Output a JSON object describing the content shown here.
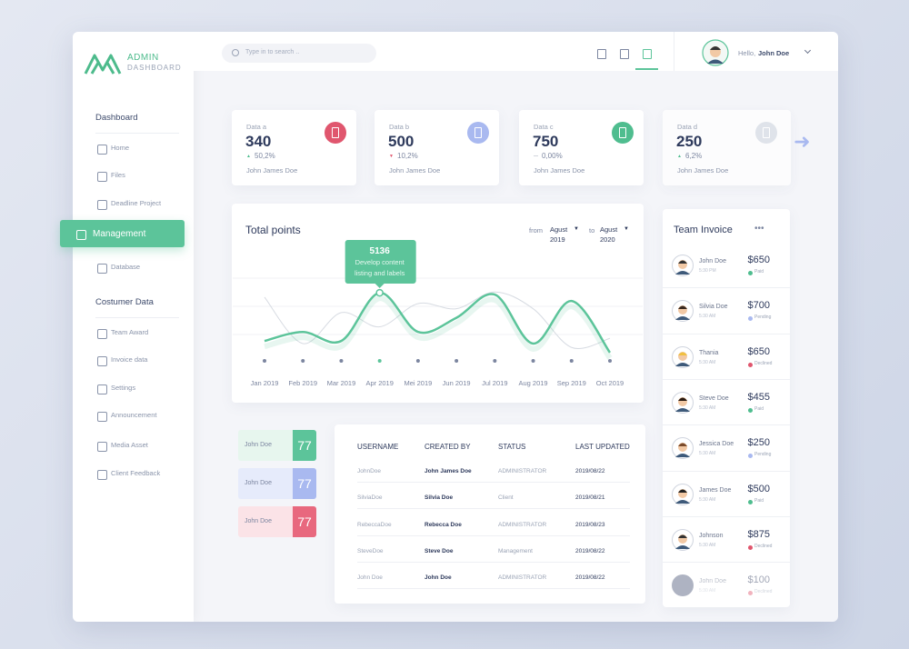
{
  "sidebar": {
    "logo_title": "ADMIN",
    "logo_subtitle": "DASHBOARD",
    "sections": [
      {
        "heading": "Dashboard",
        "items": [
          "Home",
          "Files",
          "Deadline Project",
          "Management",
          "Database"
        ]
      },
      {
        "heading": "Costumer Data",
        "items": [
          "Team Award",
          "Invoice data",
          "Settings",
          "Announcement",
          "Media Asset",
          "Client Feedback"
        ]
      }
    ]
  },
  "topbar": {
    "search_placeholder": "Type in to search ..",
    "greeting": "Hello,",
    "user": "John Doe"
  },
  "stats": [
    {
      "label": "Data a",
      "value": "340",
      "change": "50,2%",
      "name": "John James Doe"
    },
    {
      "label": "Data b",
      "value": "500",
      "change": "10,2%",
      "name": "John James Doe"
    },
    {
      "label": "Data c",
      "value": "750",
      "change": "0,00%",
      "name": "John James Doe"
    },
    {
      "label": "Data d",
      "value": "250",
      "change": "6,2%",
      "name": "John James Doe"
    }
  ],
  "chart": {
    "type": "line",
    "title": "Total points",
    "from_label": "from",
    "from_month": "Agust",
    "from_year": "2019",
    "to_label": "to",
    "to_month": "Agust",
    "to_year": "2020",
    "tooltip": {
      "value": 5136,
      "text": "Develop content listing and labels"
    },
    "categories": [
      "Jan 2019",
      "Feb 2019",
      "Mar 2019",
      "Apr 2019",
      "Mei 2019",
      "Jun 2019",
      "Jul 2019",
      "Aug 2019",
      "Sep 2019",
      "Oct 2019"
    ],
    "ylim": [
      0,
      7400
    ],
    "series": [
      {
        "color": "#5cc49a",
        "values": [
          1400,
          2100,
          1400,
          5136,
          2100,
          3200,
          5000,
          1200,
          4500,
          500
        ]
      },
      {
        "color": "#d7dbe2",
        "values": [
          4800,
          1200,
          3600,
          2500,
          4300,
          3900,
          5200,
          3900,
          900,
          1600
        ]
      }
    ]
  },
  "mini_cards": [
    {
      "name": "John Doe",
      "value": "77"
    },
    {
      "name": "John Doe",
      "value": "77"
    },
    {
      "name": "John Doe",
      "value": "77"
    }
  ],
  "table": {
    "headers": [
      "USERNAME",
      "CREATED BY",
      "STATUS",
      "LAST UPDATED"
    ],
    "rows": [
      [
        "JohnDoe",
        "John James Doe",
        "ADMINISTRATOR",
        "2019/08/22"
      ],
      [
        "SilviaDoe",
        "Silvia Doe",
        "Client",
        "2019/08/21"
      ],
      [
        "RebeccaDoe",
        "Rebecca Doe",
        "ADMINISTRATOR",
        "2019/08/23"
      ],
      [
        "SteveDoe",
        "Steve Doe",
        "Management",
        "2019/08/22"
      ],
      [
        "John Doe",
        "John Doe",
        "ADMINISTRATOR",
        "2019/08/22"
      ]
    ]
  },
  "invoice": {
    "title": "Team Invoice",
    "items": [
      {
        "name": "John Doe",
        "time": "5:30 PM",
        "amount": "$650",
        "status": "Paid"
      },
      {
        "name": "Silvia Doe",
        "time": "5:30 AM",
        "amount": "$700",
        "status": "Pending"
      },
      {
        "name": "Thania",
        "time": "5:30 AM",
        "amount": "$650",
        "status": "Declined"
      },
      {
        "name": "Steve Doe",
        "time": "5:30 AM",
        "amount": "$455",
        "status": "Paid"
      },
      {
        "name": "Jessica Doe",
        "time": "5:30 AM",
        "amount": "$250",
        "status": "Pending"
      },
      {
        "name": "James Doe",
        "time": "5:30 AM",
        "amount": "$500",
        "status": "Paid"
      },
      {
        "name": "Johnson",
        "time": "5:30 AM",
        "amount": "$875",
        "status": "Declined"
      },
      {
        "name": "John Doe",
        "time": "5:30 AM",
        "amount": "$100",
        "status": "Declined"
      }
    ]
  }
}
